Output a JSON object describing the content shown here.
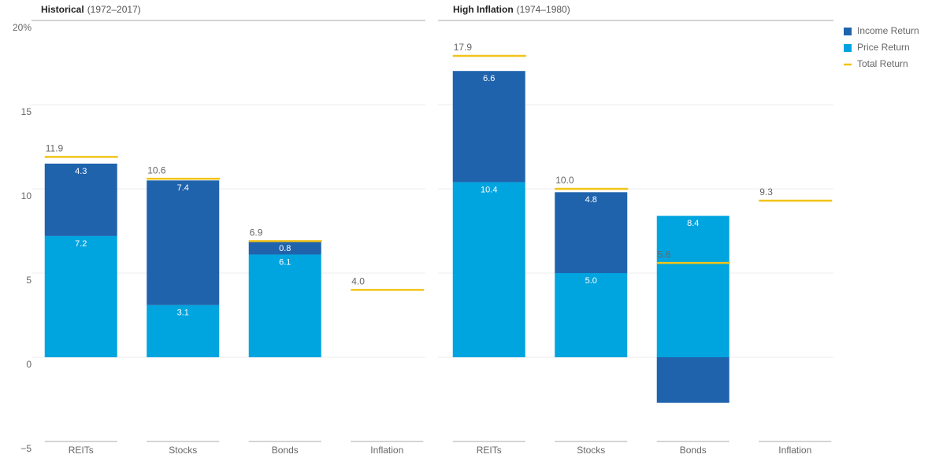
{
  "chart_data": [
    {
      "type": "bar",
      "stacked": true,
      "title": "Historical",
      "subtitle": "(1972–2017)",
      "categories": [
        "REITs",
        "Stocks",
        "Bonds",
        "Inflation"
      ],
      "series": [
        {
          "name": "Income Return",
          "type": "bar",
          "color": "#1f63ad",
          "values": [
            4.3,
            7.4,
            0.8,
            null
          ],
          "value_labels": [
            "4.3",
            "7.4",
            "0.8",
            null
          ]
        },
        {
          "name": "Price Return",
          "type": "bar",
          "color": "#00a4df",
          "values": [
            7.2,
            3.1,
            6.1,
            null
          ],
          "value_labels": [
            "7.2",
            "3.1",
            "6.1",
            null
          ]
        },
        {
          "name": "Total Return",
          "type": "line",
          "color": "#f2c318",
          "values": [
            11.9,
            10.6,
            6.9,
            4.0
          ],
          "value_labels": [
            "11.9",
            "10.6",
            "6.9",
            "4.0"
          ]
        }
      ],
      "ylim": [
        -5,
        20
      ],
      "yticks": [
        {
          "value": -5,
          "label": "−5"
        },
        0,
        5,
        10,
        15,
        {
          "value": 20,
          "label": "20%"
        }
      ],
      "grid": true
    },
    {
      "type": "bar",
      "stacked": true,
      "title": "High Inflation",
      "subtitle": "(1974–1980)",
      "categories": [
        "REITs",
        "Stocks",
        "Bonds",
        "Inflation"
      ],
      "series": [
        {
          "type": "bar",
          "color": "#1f63ad",
          "values": [
            6.6,
            4.8,
            -2.7,
            null
          ],
          "value_labels": [
            "6.6",
            "4.8",
            null,
            null
          ]
        },
        {
          "type": "bar",
          "color": "#00a4df",
          "values": [
            10.4,
            5.0,
            8.4,
            null
          ],
          "value_labels": [
            "10.4",
            "5.0",
            "8.4",
            null
          ]
        },
        {
          "type": "line",
          "color": "#f2c318",
          "values": [
            17.9,
            10.0,
            5.6,
            9.3
          ],
          "value_labels": [
            "17.9",
            "10.0",
            "5.6",
            "9.3"
          ]
        }
      ],
      "ylim": [
        -5,
        20
      ],
      "yticks": [
        -5,
        0,
        5,
        10,
        15,
        20
      ],
      "grid": true
    }
  ]
}
